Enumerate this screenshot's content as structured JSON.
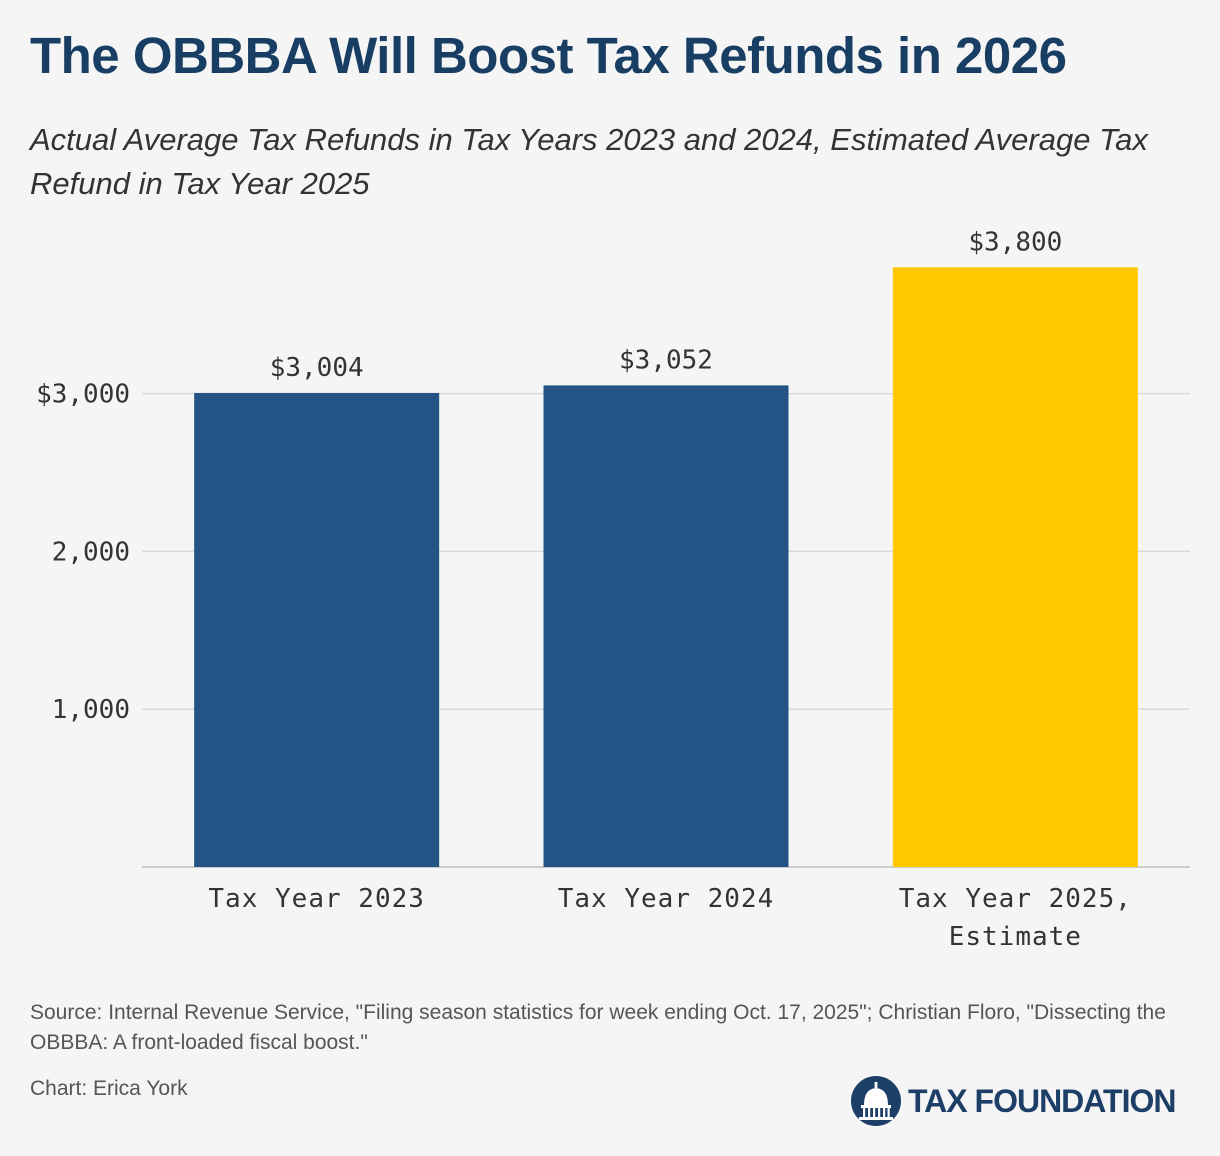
{
  "header": {
    "title": "The OBBBA Will Boost Tax Refunds in 2026",
    "subtitle": "Actual Average Tax Refunds in Tax Years 2023 and 2024, Estimated Average Tax Refund in Tax Year 2025"
  },
  "chart_data": {
    "type": "bar",
    "categories": [
      [
        "Tax Year 2023"
      ],
      [
        "Tax Year 2024"
      ],
      [
        "Tax Year 2025,",
        "Estimate"
      ]
    ],
    "values": [
      3004,
      3052,
      3800
    ],
    "data_labels": [
      "$3,004",
      "$3,052",
      "$3,800"
    ],
    "bar_colors": [
      "#245485",
      "#245485",
      "#ffc800"
    ],
    "yticks": [
      {
        "value": 1000,
        "label": "1,000"
      },
      {
        "value": 2000,
        "label": "2,000"
      },
      {
        "value": 3000,
        "label": "$3,000"
      }
    ],
    "ylim": [
      0,
      4200
    ],
    "grid": true,
    "gridline_color": "#d9d9d9",
    "title": "The OBBBA Will Boost Tax Refunds in 2026",
    "xlabel": "",
    "ylabel": ""
  },
  "footer": {
    "source": "Source: Internal Revenue Service, \"Filing season statistics for week ending Oct. 17, 2025\"; Christian Floro, \"Dissecting the OBBBA: A front-loaded fiscal boost.\"",
    "credit": "Chart: Erica York",
    "logo_text": "TAX FOUNDATION",
    "logo_color": "#1d3f67"
  },
  "colors": {
    "title": "#183e63",
    "background": "#f5f5f5",
    "axis_text": "#333333"
  }
}
